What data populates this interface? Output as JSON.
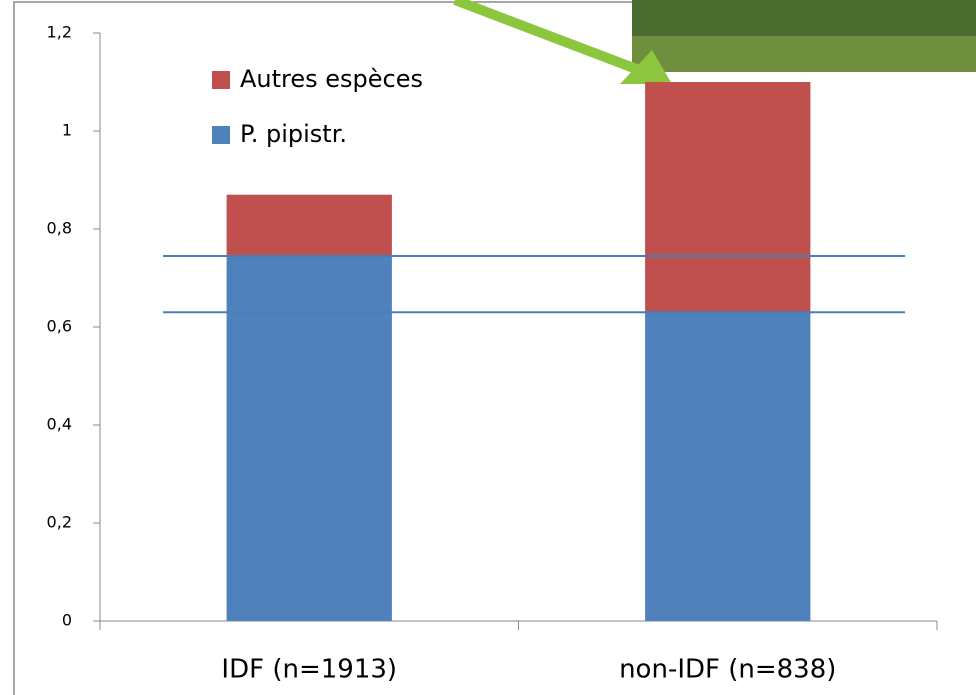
{
  "chart_data": {
    "type": "stacked_bar",
    "categories": [
      "IDF (n=1913)",
      "non-IDF (n=838)"
    ],
    "series": [
      {
        "name": "P. pipistr.",
        "color": "#4f81bd",
        "values": [
          0.745,
          0.63
        ]
      },
      {
        "name": "Autres espèces",
        "color": "#c0504d",
        "values": [
          0.125,
          0.47
        ]
      }
    ],
    "ylim": [
      0,
      1.2
    ],
    "yticks": [
      0,
      {
        "value": 0.2,
        "label": "0,2"
      },
      {
        "value": 0.4,
        "label": "0,4"
      },
      {
        "value": 0.6,
        "label": "0,6"
      },
      {
        "value": 0.8,
        "label": "0,8"
      },
      1,
      {
        "value": 1.2,
        "label": "1,2"
      }
    ],
    "reference_lines": [
      0.745,
      0.63
    ],
    "reference_color": "#4a7ebb"
  }
}
